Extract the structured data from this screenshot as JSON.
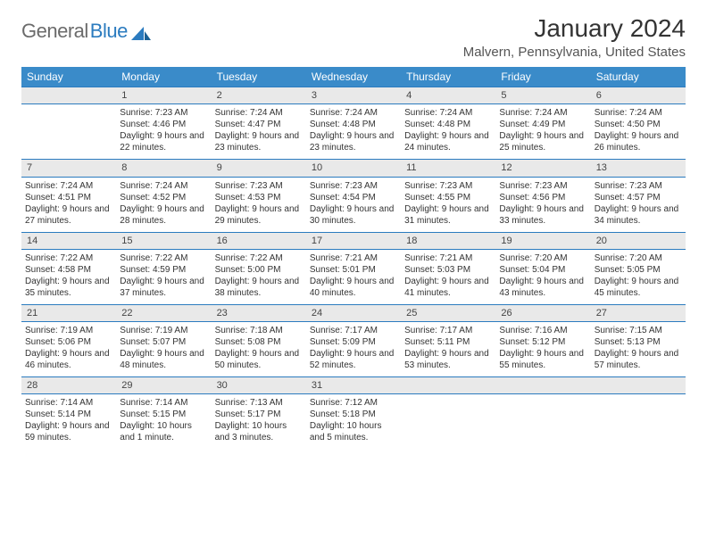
{
  "logo": {
    "gray": "General",
    "blue": "Blue"
  },
  "header": {
    "title": "January 2024",
    "location": "Malvern, Pennsylvania, United States"
  },
  "colors": {
    "header_bg": "#3a8bc9",
    "accent": "#2b7bbf",
    "row_shade": "#e9e9e9",
    "text": "#333333"
  },
  "weekdays": [
    "Sunday",
    "Monday",
    "Tuesday",
    "Wednesday",
    "Thursday",
    "Friday",
    "Saturday"
  ],
  "weeks": [
    [
      null,
      {
        "n": "1",
        "sunrise": "7:23 AM",
        "sunset": "4:46 PM",
        "daylight": "9 hours and 22 minutes."
      },
      {
        "n": "2",
        "sunrise": "7:24 AM",
        "sunset": "4:47 PM",
        "daylight": "9 hours and 23 minutes."
      },
      {
        "n": "3",
        "sunrise": "7:24 AM",
        "sunset": "4:48 PM",
        "daylight": "9 hours and 23 minutes."
      },
      {
        "n": "4",
        "sunrise": "7:24 AM",
        "sunset": "4:48 PM",
        "daylight": "9 hours and 24 minutes."
      },
      {
        "n": "5",
        "sunrise": "7:24 AM",
        "sunset": "4:49 PM",
        "daylight": "9 hours and 25 minutes."
      },
      {
        "n": "6",
        "sunrise": "7:24 AM",
        "sunset": "4:50 PM",
        "daylight": "9 hours and 26 minutes."
      }
    ],
    [
      {
        "n": "7",
        "sunrise": "7:24 AM",
        "sunset": "4:51 PM",
        "daylight": "9 hours and 27 minutes."
      },
      {
        "n": "8",
        "sunrise": "7:24 AM",
        "sunset": "4:52 PM",
        "daylight": "9 hours and 28 minutes."
      },
      {
        "n": "9",
        "sunrise": "7:23 AM",
        "sunset": "4:53 PM",
        "daylight": "9 hours and 29 minutes."
      },
      {
        "n": "10",
        "sunrise": "7:23 AM",
        "sunset": "4:54 PM",
        "daylight": "9 hours and 30 minutes."
      },
      {
        "n": "11",
        "sunrise": "7:23 AM",
        "sunset": "4:55 PM",
        "daylight": "9 hours and 31 minutes."
      },
      {
        "n": "12",
        "sunrise": "7:23 AM",
        "sunset": "4:56 PM",
        "daylight": "9 hours and 33 minutes."
      },
      {
        "n": "13",
        "sunrise": "7:23 AM",
        "sunset": "4:57 PM",
        "daylight": "9 hours and 34 minutes."
      }
    ],
    [
      {
        "n": "14",
        "sunrise": "7:22 AM",
        "sunset": "4:58 PM",
        "daylight": "9 hours and 35 minutes."
      },
      {
        "n": "15",
        "sunrise": "7:22 AM",
        "sunset": "4:59 PM",
        "daylight": "9 hours and 37 minutes."
      },
      {
        "n": "16",
        "sunrise": "7:22 AM",
        "sunset": "5:00 PM",
        "daylight": "9 hours and 38 minutes."
      },
      {
        "n": "17",
        "sunrise": "7:21 AM",
        "sunset": "5:01 PM",
        "daylight": "9 hours and 40 minutes."
      },
      {
        "n": "18",
        "sunrise": "7:21 AM",
        "sunset": "5:03 PM",
        "daylight": "9 hours and 41 minutes."
      },
      {
        "n": "19",
        "sunrise": "7:20 AM",
        "sunset": "5:04 PM",
        "daylight": "9 hours and 43 minutes."
      },
      {
        "n": "20",
        "sunrise": "7:20 AM",
        "sunset": "5:05 PM",
        "daylight": "9 hours and 45 minutes."
      }
    ],
    [
      {
        "n": "21",
        "sunrise": "7:19 AM",
        "sunset": "5:06 PM",
        "daylight": "9 hours and 46 minutes."
      },
      {
        "n": "22",
        "sunrise": "7:19 AM",
        "sunset": "5:07 PM",
        "daylight": "9 hours and 48 minutes."
      },
      {
        "n": "23",
        "sunrise": "7:18 AM",
        "sunset": "5:08 PM",
        "daylight": "9 hours and 50 minutes."
      },
      {
        "n": "24",
        "sunrise": "7:17 AM",
        "sunset": "5:09 PM",
        "daylight": "9 hours and 52 minutes."
      },
      {
        "n": "25",
        "sunrise": "7:17 AM",
        "sunset": "5:11 PM",
        "daylight": "9 hours and 53 minutes."
      },
      {
        "n": "26",
        "sunrise": "7:16 AM",
        "sunset": "5:12 PM",
        "daylight": "9 hours and 55 minutes."
      },
      {
        "n": "27",
        "sunrise": "7:15 AM",
        "sunset": "5:13 PM",
        "daylight": "9 hours and 57 minutes."
      }
    ],
    [
      {
        "n": "28",
        "sunrise": "7:14 AM",
        "sunset": "5:14 PM",
        "daylight": "9 hours and 59 minutes."
      },
      {
        "n": "29",
        "sunrise": "7:14 AM",
        "sunset": "5:15 PM",
        "daylight": "10 hours and 1 minute."
      },
      {
        "n": "30",
        "sunrise": "7:13 AM",
        "sunset": "5:17 PM",
        "daylight": "10 hours and 3 minutes."
      },
      {
        "n": "31",
        "sunrise": "7:12 AM",
        "sunset": "5:18 PM",
        "daylight": "10 hours and 5 minutes."
      },
      null,
      null,
      null
    ]
  ]
}
